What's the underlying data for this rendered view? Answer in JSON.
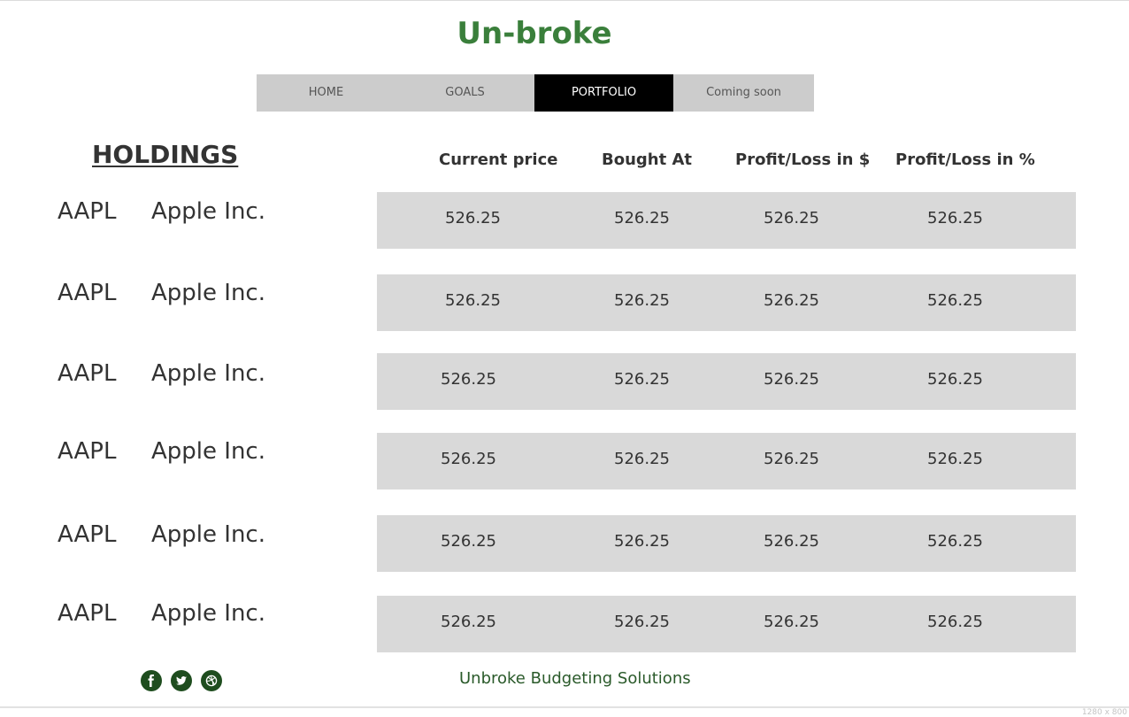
{
  "brand": {
    "title": "Un-broke"
  },
  "nav": {
    "items": [
      {
        "label": "HOME"
      },
      {
        "label": "GOALS"
      },
      {
        "label": "PORTFOLIO"
      },
      {
        "label": "Coming soon"
      }
    ],
    "active": "PORTFOLIO"
  },
  "holdings": {
    "title": "HOLDINGS",
    "columns": [
      "Current price",
      "Bought At",
      "Profit/Loss in $",
      "Profit/Loss in %"
    ],
    "rows": [
      {
        "symbol": "AAPL",
        "name": "Apple Inc.",
        "current_price": "526.25",
        "bought_at": "526.25",
        "pl_dollar": "526.25",
        "pl_percent": "526.25"
      },
      {
        "symbol": "AAPL",
        "name": "Apple Inc.",
        "current_price": "526.25",
        "bought_at": "526.25",
        "pl_dollar": "526.25",
        "pl_percent": "526.25"
      },
      {
        "symbol": "AAPL",
        "name": "Apple Inc.",
        "current_price": "526.25",
        "bought_at": "526.25",
        "pl_dollar": "526.25",
        "pl_percent": "526.25"
      },
      {
        "symbol": "AAPL",
        "name": "Apple Inc.",
        "current_price": "526.25",
        "bought_at": "526.25",
        "pl_dollar": "526.25",
        "pl_percent": "526.25"
      },
      {
        "symbol": "AAPL",
        "name": "Apple Inc.",
        "current_price": "526.25",
        "bought_at": "526.25",
        "pl_dollar": "526.25",
        "pl_percent": "526.25"
      },
      {
        "symbol": "AAPL",
        "name": "Apple Inc.",
        "current_price": "526.25",
        "bought_at": "526.25",
        "pl_dollar": "526.25",
        "pl_percent": "526.25"
      }
    ]
  },
  "footer": {
    "social_icons": [
      "facebook-icon",
      "twitter-icon",
      "dribbble-icon"
    ],
    "text": "Unbroke Budgeting Solutions"
  },
  "canvas_size_label": "1280 x 800",
  "colors": {
    "brand": "#3a7f3b",
    "nav_background": "#cccccc",
    "nav_active": "#000000",
    "row_background": "#d9d9d9",
    "footer_text": "#2a5a2a",
    "social_icon": "#1e4d1e"
  }
}
